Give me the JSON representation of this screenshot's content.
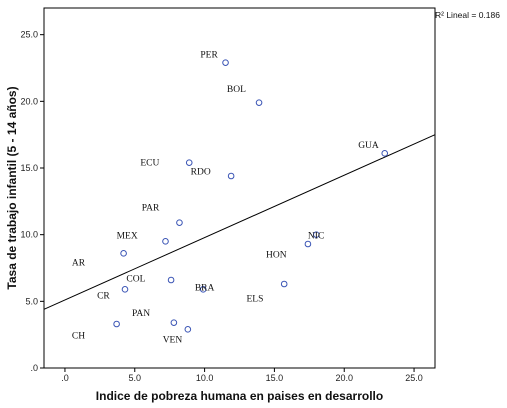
{
  "chart_data": {
    "type": "scatter",
    "xlabel": "Indice de pobreza humana en paises en desarrollo",
    "ylabel": "Tasa de trabajo infantil (5 - 14 años)",
    "xlim": [
      -1.5,
      26.5
    ],
    "ylim": [
      0,
      27
    ],
    "x_ticks": [
      0,
      5,
      10,
      15,
      20,
      25
    ],
    "x_tick_labels": [
      ".0",
      "5.0",
      "10.0",
      "15.0",
      "20.0",
      "25.0"
    ],
    "y_ticks": [
      0,
      5,
      10,
      15,
      20,
      25
    ],
    "y_tick_labels": [
      ".0",
      "5.0",
      "10.0",
      "15.0",
      "20.0",
      "25.0"
    ],
    "grid": false,
    "r2_label": "R² Lineal = 0.186",
    "marker_color": "#3b55b5",
    "fit_line": {
      "x": [
        -1.5,
        26.5
      ],
      "y": [
        4.4,
        17.5
      ]
    },
    "points": [
      {
        "label": "PER",
        "x": 11.5,
        "y": 22.9
      },
      {
        "label": "BOL",
        "x": 13.9,
        "y": 19.9
      },
      {
        "label": "GUA",
        "x": 22.9,
        "y": 16.1
      },
      {
        "label": "ECU",
        "x": 8.9,
        "y": 15.4
      },
      {
        "label": "RDO",
        "x": 11.9,
        "y": 14.4
      },
      {
        "label": "PAR",
        "x": 8.2,
        "y": 10.9
      },
      {
        "label": "MEX",
        "x": 7.2,
        "y": 9.5
      },
      {
        "label": "",
        "x": 4.2,
        "y": 8.6
      },
      {
        "label": "NIC",
        "x": 17.4,
        "y": 9.3
      },
      {
        "label": "",
        "x": 18.0,
        "y": 10.0
      },
      {
        "label": "HON",
        "x": 15.7,
        "y": 6.3
      },
      {
        "label": "COL",
        "x": 7.6,
        "y": 6.6
      },
      {
        "label": "",
        "x": 4.3,
        "y": 5.9
      },
      {
        "label": "BRA",
        "x": 9.9,
        "y": 5.9
      },
      {
        "label": "ELS",
        "x": null,
        "y": null
      },
      {
        "label": "PAN",
        "x": 7.8,
        "y": 3.4
      },
      {
        "label": "",
        "x": 3.7,
        "y": 3.3
      },
      {
        "label": "VEN",
        "x": 8.8,
        "y": 2.9
      },
      {
        "label": "AR",
        "x": null,
        "y": null
      },
      {
        "label": "CR",
        "x": null,
        "y": null
      },
      {
        "label": "CH",
        "x": null,
        "y": null
      }
    ],
    "text_labels": [
      {
        "label": "PER",
        "x": 9.7,
        "y": 23.3
      },
      {
        "label": "BOL",
        "x": 11.6,
        "y": 20.7
      },
      {
        "label": "GUA",
        "x": 21.0,
        "y": 16.5
      },
      {
        "label": "ECU",
        "x": 5.4,
        "y": 15.2
      },
      {
        "label": "RDO",
        "x": 9.0,
        "y": 14.5
      },
      {
        "label": "PAR",
        "x": 5.5,
        "y": 11.8
      },
      {
        "label": "MEX",
        "x": 3.7,
        "y": 9.7
      },
      {
        "label": "NIC",
        "x": 17.4,
        "y": 9.7
      },
      {
        "label": "HON",
        "x": 14.4,
        "y": 8.3
      },
      {
        "label": "AR",
        "x": 0.5,
        "y": 7.7
      },
      {
        "label": "COL",
        "x": 4.4,
        "y": 6.5
      },
      {
        "label": "BRA",
        "x": 9.3,
        "y": 5.8
      },
      {
        "label": "CR",
        "x": 2.3,
        "y": 5.2
      },
      {
        "label": "ELS",
        "x": 13.0,
        "y": 5.0
      },
      {
        "label": "PAN",
        "x": 4.8,
        "y": 3.9
      },
      {
        "label": "CH",
        "x": 0.5,
        "y": 2.2
      },
      {
        "label": "VEN",
        "x": 7.0,
        "y": 1.9
      }
    ]
  }
}
